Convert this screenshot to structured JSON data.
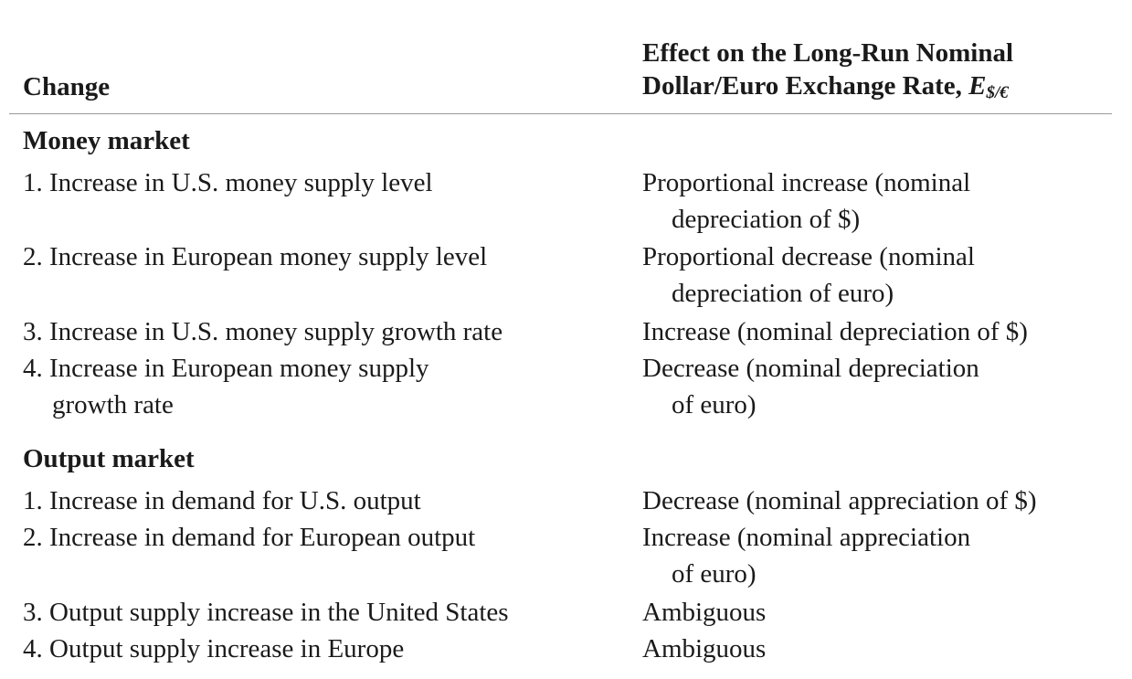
{
  "header": {
    "change": "Change",
    "effect_line1": "Effect on the Long-Run Nominal",
    "effect_line2": "Dollar/Euro Exchange Rate,",
    "effect_symbol": "E",
    "effect_subscript": "$/€"
  },
  "sections": [
    {
      "title": "Money market",
      "rows": [
        {
          "change": [
            "1. Increase in U.S. money supply level"
          ],
          "effect": [
            "Proportional increase (nominal",
            "depreciation of $)"
          ]
        },
        {
          "change": [
            "2. Increase in European money supply level"
          ],
          "effect": [
            "Proportional decrease (nominal",
            "depreciation of euro)"
          ]
        },
        {
          "change": [
            "3. Increase in U.S. money supply growth rate"
          ],
          "effect": [
            "Increase (nominal depreciation of $)"
          ]
        },
        {
          "change": [
            "4. Increase in European money supply",
            "growth rate"
          ],
          "effect": [
            "Decrease (nominal depreciation",
            "of euro)"
          ]
        }
      ]
    },
    {
      "title": "Output market",
      "rows": [
        {
          "change": [
            "1. Increase in demand for U.S. output"
          ],
          "effect": [
            "Decrease (nominal appreciation of $)"
          ]
        },
        {
          "change": [
            "2. Increase in demand for European output"
          ],
          "effect": [
            "Increase (nominal appreciation",
            "of euro)"
          ]
        },
        {
          "change": [
            "3. Output supply increase in the United States"
          ],
          "effect": [
            "Ambiguous"
          ]
        },
        {
          "change": [
            "4. Output supply increase in Europe"
          ],
          "effect": [
            "Ambiguous"
          ]
        }
      ]
    }
  ]
}
